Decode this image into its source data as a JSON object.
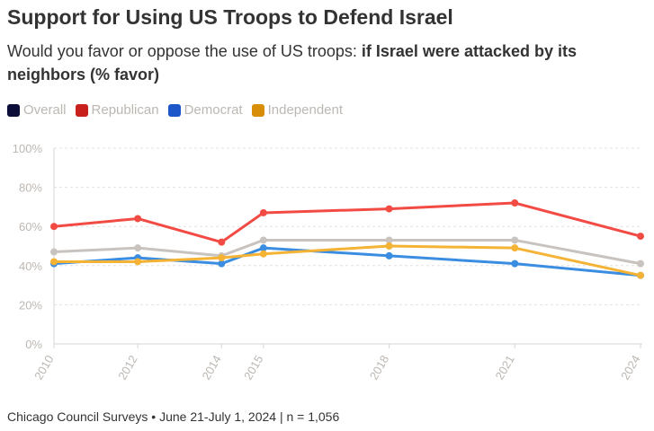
{
  "header": {
    "title": "Support for Using US Troops to Defend Israel",
    "subtitle_prefix": "Would you favor or oppose the use of US troops: ",
    "subtitle_bold": "if Israel were attacked by its neighbors (% favor)"
  },
  "footer": {
    "source": "Chicago Council Surveys • June 21-July 1, 2024 | n = 1,056"
  },
  "chart_data": {
    "type": "line",
    "x": [
      "2010",
      "2012",
      "2014",
      "2015",
      "2018",
      "2021",
      "2024"
    ],
    "ylim": [
      0,
      100
    ],
    "yticks": [
      "0%",
      "20%",
      "40%",
      "60%",
      "80%",
      "100%"
    ],
    "grid": true,
    "legend_position": "top-left",
    "series": [
      {
        "name": "Overall",
        "color": "#c8c3bf",
        "legend_color": "#0d0d3a",
        "values": [
          47,
          49,
          45,
          53,
          53,
          53,
          41
        ]
      },
      {
        "name": "Republican",
        "color": "#f24b44",
        "legend_color": "#c8201c",
        "values": [
          60,
          64,
          52,
          67,
          69,
          72,
          55
        ]
      },
      {
        "name": "Democrat",
        "color": "#3a8de0",
        "legend_color": "#1c56c9",
        "values": [
          41,
          44,
          41,
          49,
          45,
          41,
          35
        ]
      },
      {
        "name": "Independent",
        "color": "#f5b335",
        "legend_color": "#d98e0a",
        "values": [
          42,
          42,
          44,
          46,
          50,
          49,
          35
        ]
      }
    ]
  }
}
